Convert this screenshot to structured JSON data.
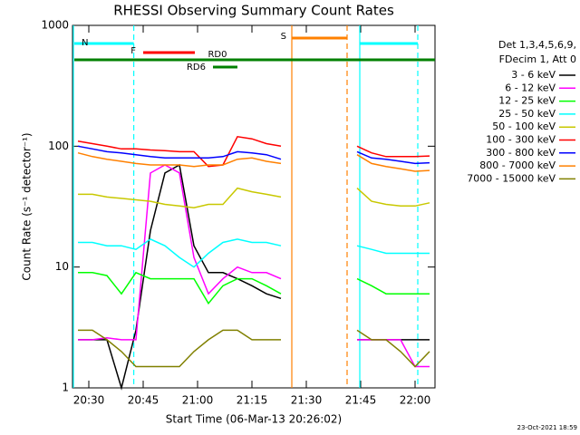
{
  "chart_data": {
    "type": "line",
    "title": "RHESSI Observing Summary Count Rates",
    "x_label": "Start Time (06-Mar-13 20:26:02)",
    "y_label": "Count Rate (s⁻¹ detector⁻¹)",
    "footer": "23-Oct-2021 18:59",
    "legend_header": [
      "Det 1,3,4,5,6,9,",
      "FDecim 1, Att 0"
    ],
    "log_y": true,
    "xlim": [
      1225.5,
      1325.5
    ],
    "ylim": [
      1,
      1000
    ],
    "xticks": [
      {
        "value": 1230,
        "label": "20:30"
      },
      {
        "value": 1245,
        "label": "20:45"
      },
      {
        "value": 1260,
        "label": "21:00"
      },
      {
        "value": 1275,
        "label": "21:15"
      },
      {
        "value": 1290,
        "label": "21:30"
      },
      {
        "value": 1305,
        "label": "21:45"
      },
      {
        "value": 1320,
        "label": "22:00"
      }
    ],
    "yticks": [
      1,
      10,
      100,
      1000
    ],
    "x": [
      1227,
      1231,
      1235,
      1239,
      1243,
      1247,
      1251,
      1255,
      1259,
      1263,
      1267,
      1271,
      1275,
      1279,
      1283,
      1294,
      1304,
      1308,
      1312,
      1316,
      1320,
      1324
    ],
    "series": [
      {
        "name": "3 - 6 keV",
        "color": "#000000",
        "values": [
          2.5,
          2.5,
          2.5,
          1,
          3,
          20,
          60,
          70,
          15,
          9,
          9,
          8,
          7,
          6,
          5.5,
          null,
          2.5,
          2.5,
          2.5,
          2.5,
          2.5,
          2.5
        ]
      },
      {
        "name": "6 - 12 keV",
        "color": "#ff00ff",
        "values": [
          2.5,
          2.5,
          2.6,
          2.5,
          2.5,
          60,
          70,
          60,
          12,
          6,
          8,
          10,
          9,
          9,
          8,
          null,
          2.5,
          2.5,
          2.5,
          2.5,
          1.5,
          1.5
        ]
      },
      {
        "name": "12 - 25 keV",
        "color": "#00ff00",
        "values": [
          9,
          9,
          8.5,
          6,
          9,
          8,
          8,
          8,
          8,
          5,
          7,
          8,
          8,
          7,
          6,
          null,
          8,
          7,
          6,
          6,
          6,
          6
        ]
      },
      {
        "name": "25 - 50 keV",
        "color": "#00ffff",
        "values": [
          16,
          16,
          15,
          15,
          14,
          17,
          15,
          12,
          10,
          13,
          16,
          17,
          16,
          16,
          15,
          null,
          15,
          14,
          13,
          13,
          13,
          13
        ]
      },
      {
        "name": "50 - 100 keV",
        "color": "#c8c800",
        "values": [
          40,
          40,
          38,
          37,
          36,
          35,
          33,
          32,
          31,
          33,
          33,
          45,
          42,
          40,
          38,
          null,
          45,
          35,
          33,
          32,
          32,
          34
        ]
      },
      {
        "name": "100 - 300 keV",
        "color": "#ff0000",
        "values": [
          110,
          105,
          100,
          95,
          95,
          93,
          92,
          90,
          90,
          68,
          70,
          120,
          115,
          105,
          100,
          null,
          100,
          88,
          82,
          82,
          82,
          83
        ]
      },
      {
        "name": "300 - 800 keV",
        "color": "#0000ff",
        "values": [
          100,
          95,
          90,
          88,
          85,
          82,
          80,
          80,
          80,
          80,
          82,
          90,
          88,
          85,
          78,
          null,
          90,
          80,
          78,
          75,
          72,
          73
        ]
      },
      {
        "name": "800 - 7000 keV",
        "color": "#ff8000",
        "values": [
          88,
          82,
          78,
          75,
          72,
          70,
          70,
          70,
          68,
          70,
          70,
          78,
          80,
          75,
          72,
          null,
          85,
          72,
          68,
          65,
          62,
          63
        ]
      },
      {
        "name": "7000 - 15000 keV",
        "color": "#808000",
        "values": [
          3,
          3,
          2.5,
          2,
          1.5,
          1.5,
          1.5,
          1.5,
          2,
          2.5,
          3,
          3,
          2.5,
          2.5,
          2.5,
          null,
          3,
          2.5,
          2.5,
          2,
          1.5,
          2
        ]
      }
    ],
    "flags": [
      {
        "label": "N",
        "color": "#00ffff",
        "start": 1226,
        "end": 1242.4
      },
      {
        "color": "#00ffff",
        "start": 1304.75,
        "end": 1320.75
      },
      {
        "label": "F",
        "color": "#ff0000",
        "start": 1245,
        "end": 1259.25
      },
      {
        "label": "S",
        "color": "#ff8000",
        "start": 1286,
        "end": 1301.25
      },
      {
        "label": "RD0",
        "color": "#008000",
        "start": 1226,
        "end": 1325.5
      },
      {
        "label": "RD6",
        "color": "#008000",
        "start": 1264.25,
        "end": 1271
      }
    ],
    "vlines": [
      {
        "x": 1225.75,
        "color": "#00ffff",
        "dashed": false
      },
      {
        "x": 1242.4,
        "color": "#00ffff",
        "dashed": true
      },
      {
        "x": 1286,
        "color": "#ff8000",
        "dashed": false
      },
      {
        "x": 1301.25,
        "color": "#ff8000",
        "dashed": true
      },
      {
        "x": 1304.75,
        "color": "#00ffff",
        "dashed": false
      },
      {
        "x": 1320.75,
        "color": "#00ffff",
        "dashed": true
      }
    ]
  }
}
